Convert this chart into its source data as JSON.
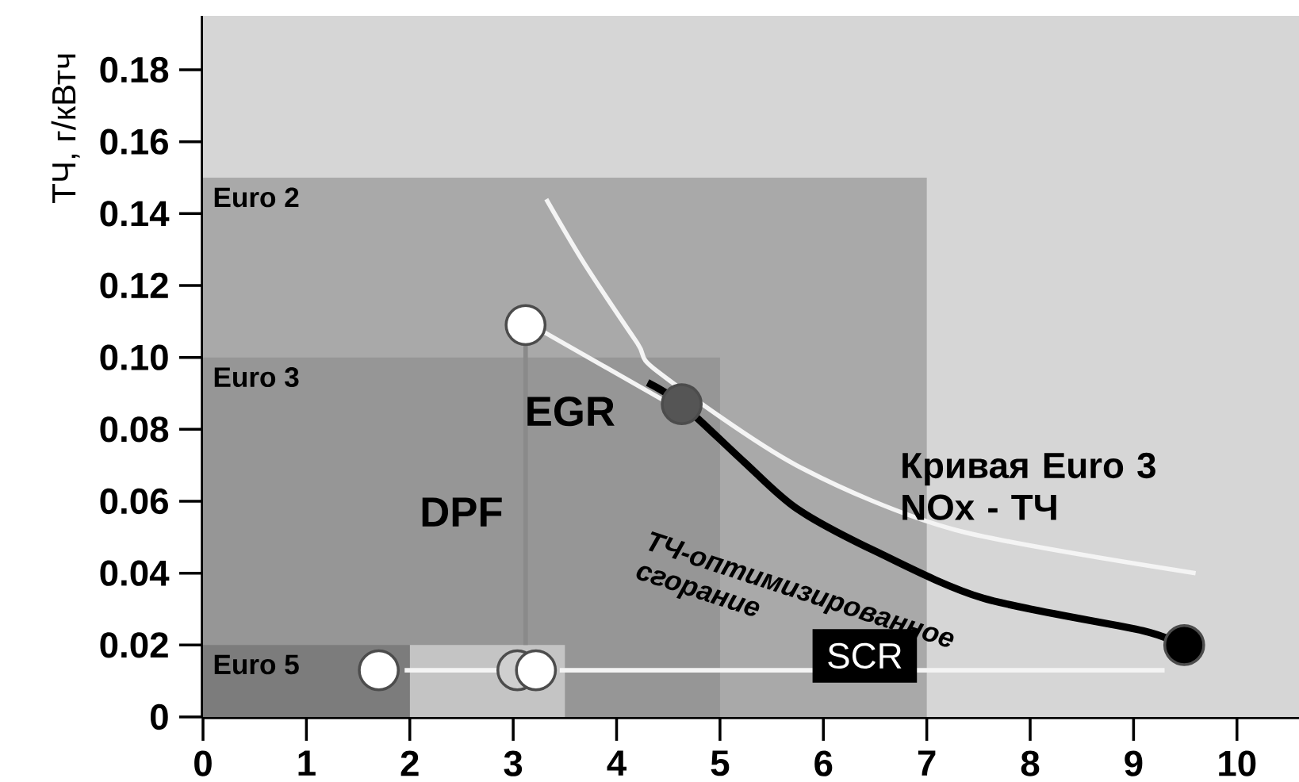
{
  "chart_data": {
    "type": "line",
    "ylabel": "ТЧ, г/кВтч",
    "xlim": [
      0,
      10.6
    ],
    "ylim": [
      0,
      0.195
    ],
    "xticks": [
      0,
      1,
      2,
      3,
      4,
      5,
      6,
      7,
      8,
      9,
      10
    ],
    "yticks": [
      {
        "value": 0,
        "label": "0"
      },
      {
        "value": 0.02,
        "label": "0.02"
      },
      {
        "value": 0.04,
        "label": "0.04"
      },
      {
        "value": 0.06,
        "label": "0.06"
      },
      {
        "value": 0.08,
        "label": "0.08"
      },
      {
        "value": 0.1,
        "label": "0.10"
      },
      {
        "value": 0.12,
        "label": "0.12"
      },
      {
        "value": 0.14,
        "label": "0.14"
      },
      {
        "value": 0.16,
        "label": "0.16"
      },
      {
        "value": 0.18,
        "label": "0.18"
      }
    ],
    "series": [
      {
        "type": "area",
        "name": "Euro 2",
        "color": "#a9a9a9",
        "x": [
          0,
          7
        ],
        "values": [
          0.15,
          0.15
        ]
      },
      {
        "type": "area",
        "name": "Euro 3",
        "color": "#969696",
        "x": [
          0,
          5
        ],
        "values": [
          0.1,
          0.1
        ]
      },
      {
        "type": "area",
        "color": "#c4c4c4",
        "x": [
          2,
          3.5
        ],
        "values": [
          0.02,
          0.02
        ]
      },
      {
        "type": "area",
        "name": "Euro 5",
        "color": "#7c7c7c",
        "x": [
          0,
          2
        ],
        "values": [
          0.02,
          0.02
        ]
      },
      {
        "name": "Кривая Euro 3 NOx - ТЧ",
        "color": "#f4f4f4",
        "x": [
          3.32,
          3.69,
          4.2,
          4.4,
          5.74,
          7.28,
          9.6
        ],
        "values": [
          0.144,
          0.126,
          0.104,
          0.096,
          0.07,
          0.052,
          0.04
        ]
      },
      {
        "color": "#000000",
        "x": [
          4.3,
          4.63,
          5.23,
          5.74,
          6.51,
          7.55,
          9.09,
          9.45
        ],
        "values": [
          0.093,
          0.087,
          0.071,
          0.058,
          0.046,
          0.033,
          0.024,
          0.02
        ]
      },
      {
        "color": "#f4f4f4",
        "x": [
          4.46,
          3.3
        ],
        "values": [
          0.088,
          0.107
        ]
      },
      {
        "color": "#8a8a8a",
        "x": [
          3.12,
          3.12
        ],
        "values": [
          0.104,
          0.02
        ]
      },
      {
        "color": "#f4f4f4",
        "x": [
          9.3,
          3.45
        ],
        "values": [
          0.013,
          0.013
        ]
      },
      {
        "color": "#f4f4f4",
        "x": [
          2.9,
          1.95
        ],
        "values": [
          0.013,
          0.013
        ]
      },
      {
        "type": "scatter",
        "x": [
          3.12,
          4.63,
          9.49,
          1.7,
          3.04,
          3.22
        ],
        "values": [
          0.109,
          0.087,
          0.02,
          0.013,
          0.013,
          0.013
        ],
        "colors": [
          "#ffffff",
          "#555555",
          "#000000",
          "#ffffff",
          "#cfcfcf",
          "#ffffff"
        ]
      }
    ],
    "annotations": [
      "EGR",
      "DPF",
      "SCR",
      "ТЧ-оптимизированное сгорание"
    ],
    "tick_labels": "xy"
  }
}
